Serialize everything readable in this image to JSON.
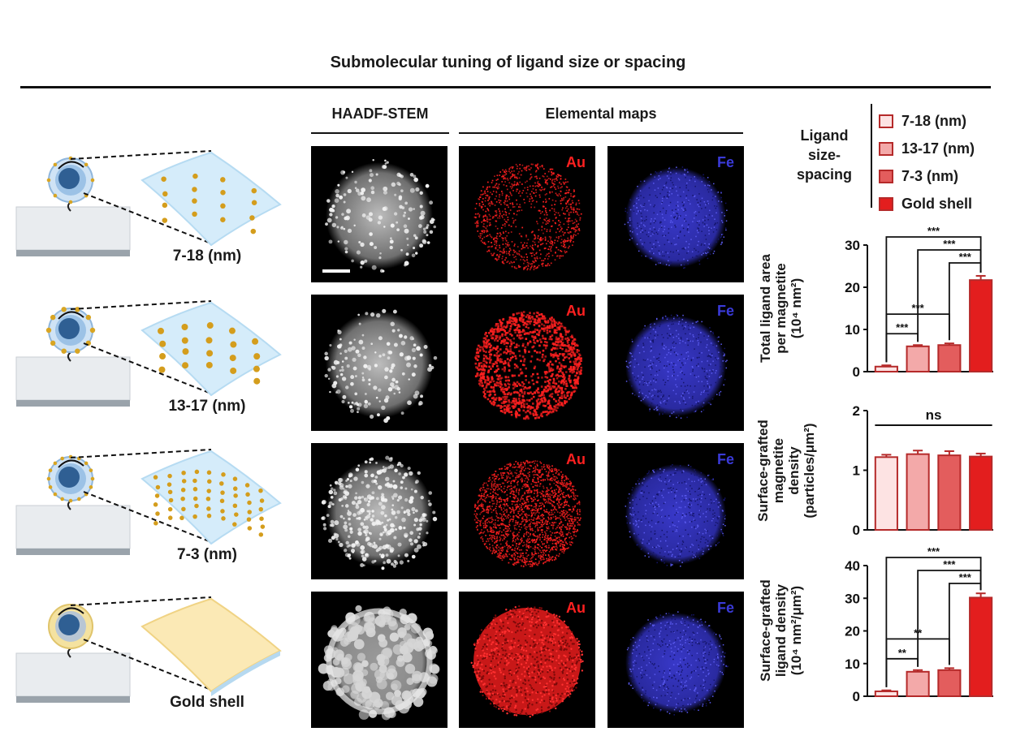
{
  "figure": {
    "title": "Submolecular tuning of ligand size or spacing",
    "columns": {
      "stem": "HAADF-STEM",
      "maps": "Elemental maps"
    },
    "rows": [
      {
        "label": "7-18 (nm)",
        "density": 14,
        "dot": 4.5,
        "au_density": 0.35
      },
      {
        "label": "13-17 (nm)",
        "density": 22,
        "dot": 6,
        "au_density": 0.5
      },
      {
        "label": "7-3 (nm)",
        "density": 45,
        "dot": 3.5,
        "au_density": 0.85
      },
      {
        "label": "Gold shell",
        "density": 0,
        "dot": 0,
        "au_density": 1.0
      }
    ],
    "map_labels": {
      "au": "Au",
      "fe": "Fe"
    },
    "legend": {
      "title_lines": [
        "Ligand",
        "size-",
        "spacing"
      ],
      "items": [
        {
          "label": "7-18 (nm)",
          "color": "#fde3e3"
        },
        {
          "label": "13-17 (nm)",
          "color": "#f3a9a9"
        },
        {
          "label": "7-3 (nm)",
          "color": "#e35d5d"
        },
        {
          "label": "Gold shell",
          "color": "#e31e1e"
        }
      ]
    },
    "colors": {
      "au": "#ff2020",
      "fe": "#3a3ad8",
      "bar_edge": "#b52a2a"
    }
  },
  "chart_data": [
    {
      "type": "bar",
      "ylabel_lines": [
        "Total ligand area",
        "per magnetite",
        "(10⁴ nm²)"
      ],
      "categories": [
        "7-18 (nm)",
        "13-17 (nm)",
        "7-3 (nm)",
        "Gold shell"
      ],
      "values": [
        1.2,
        6.0,
        6.3,
        21.7
      ],
      "errors": [
        0.3,
        0.3,
        0.4,
        1.0
      ],
      "ylim": [
        0,
        30
      ],
      "yticks": [
        "0",
        "10",
        "20",
        "30"
      ],
      "significance": [
        {
          "from": 0,
          "to": 3,
          "label": "***"
        },
        {
          "from": 1,
          "to": 3,
          "label": "***"
        },
        {
          "from": 2,
          "to": 3,
          "label": "***"
        },
        {
          "from": 0,
          "to": 2,
          "label": "***"
        },
        {
          "from": 0,
          "to": 1,
          "label": "***"
        }
      ]
    },
    {
      "type": "bar",
      "ylabel_lines": [
        "Surface-grafted",
        "magnetite",
        "density",
        "(particles/μm²)"
      ],
      "categories": [
        "7-18 (nm)",
        "13-17 (nm)",
        "7-3 (nm)",
        "Gold shell"
      ],
      "values": [
        1.22,
        1.27,
        1.25,
        1.23
      ],
      "errors": [
        0.04,
        0.06,
        0.07,
        0.05
      ],
      "ylim": [
        0,
        2
      ],
      "yticks": [
        "0",
        "1",
        "2"
      ],
      "significance": [
        {
          "from": 0,
          "to": 3,
          "label": "ns",
          "style": "line"
        }
      ]
    },
    {
      "type": "bar",
      "ylabel_lines": [
        "Surface-grafted",
        "ligand density",
        "(10⁴ nm²/μm²)"
      ],
      "categories": [
        "7-18 (nm)",
        "13-17 (nm)",
        "7-3 (nm)",
        "Gold shell"
      ],
      "values": [
        1.5,
        7.5,
        8.0,
        30.2
      ],
      "errors": [
        0.3,
        0.5,
        0.6,
        1.3
      ],
      "ylim": [
        0,
        40
      ],
      "yticks": [
        "0",
        "10",
        "20",
        "30",
        "40"
      ],
      "significance": [
        {
          "from": 0,
          "to": 3,
          "label": "***"
        },
        {
          "from": 1,
          "to": 3,
          "label": "***"
        },
        {
          "from": 2,
          "to": 3,
          "label": "***"
        },
        {
          "from": 0,
          "to": 2,
          "label": "**"
        },
        {
          "from": 0,
          "to": 1,
          "label": "**"
        }
      ]
    }
  ]
}
